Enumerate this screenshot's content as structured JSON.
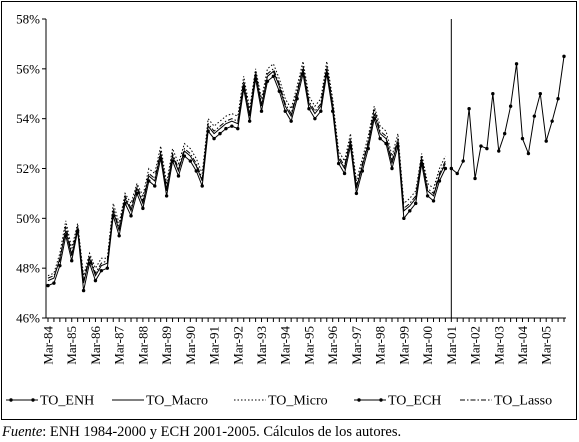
{
  "chart_data": {
    "type": "line",
    "title": "",
    "xlabel": "",
    "ylabel": "",
    "ylim": [
      46,
      58
    ],
    "y_ticks": [
      "46%",
      "48%",
      "50%",
      "52%",
      "54%",
      "56%",
      "58%"
    ],
    "x_tick_labels": [
      "Mar-84",
      "Mar-85",
      "Mar-86",
      "Mar-87",
      "Mar-88",
      "Mar-89",
      "Mar-90",
      "Mar-91",
      "Mar-92",
      "Mar-93",
      "Mar-94",
      "Mar-95",
      "Mar-96",
      "Mar-97",
      "Mar-98",
      "Mar-99",
      "Mar-00",
      "Mar-01",
      "Mar-02",
      "Mar-03",
      "Mar-04",
      "Mar-05"
    ],
    "frequency": "quarterly",
    "start": "Mar-84",
    "vertical_line_at": "Mar-01",
    "grid": false,
    "legend_position": "bottom",
    "series": [
      {
        "name": "TO_ENH",
        "style": "solid-markers",
        "values": [
          47.3,
          47.4,
          48.1,
          49.3,
          48.3,
          49.5,
          47.1,
          48.2,
          47.5,
          47.9,
          48.0,
          50.1,
          49.3,
          50.6,
          50.1,
          51.0,
          50.4,
          51.5,
          51.3,
          52.4,
          50.9,
          52.3,
          51.7,
          52.5,
          52.3,
          51.9,
          51.3,
          53.5,
          53.2,
          53.4,
          53.6,
          53.7,
          53.6,
          55.2,
          53.9,
          55.6,
          54.3,
          55.5,
          55.7,
          55.1,
          54.3,
          53.9,
          54.8,
          55.8,
          54.4,
          54.0,
          54.3,
          55.8,
          54.3,
          52.2,
          51.8,
          52.9,
          51.0,
          51.9,
          52.8,
          54.0,
          53.2,
          53.0,
          52.0,
          52.9,
          50.0,
          50.3,
          50.6,
          52.2,
          50.9,
          50.7,
          51.5,
          52.0
        ],
        "color": "#000000"
      },
      {
        "name": "TO_Macro",
        "style": "solid",
        "values": [
          47.5,
          47.6,
          48.4,
          49.5,
          48.5,
          49.6,
          47.4,
          48.4,
          47.7,
          48.1,
          48.2,
          50.3,
          49.5,
          50.8,
          50.3,
          51.2,
          50.6,
          51.7,
          51.5,
          52.6,
          51.1,
          52.5,
          51.9,
          52.7,
          52.5,
          52.1,
          51.5,
          53.7,
          53.4,
          53.6,
          53.8,
          53.9,
          53.8,
          55.4,
          54.1,
          55.8,
          54.5,
          55.7,
          55.9,
          55.3,
          54.5,
          54.1,
          55.0,
          56.0,
          54.6,
          54.2,
          54.5,
          56.0,
          54.5,
          52.4,
          52.0,
          53.1,
          51.2,
          52.1,
          53.0,
          54.2,
          53.4,
          53.2,
          52.2,
          53.1,
          50.3,
          50.5,
          50.8,
          52.4,
          51.1,
          50.9,
          51.7,
          52.2
        ],
        "color": "#000000"
      },
      {
        "name": "TO_Micro",
        "style": "dotted",
        "values": [
          47.7,
          47.8,
          48.6,
          49.9,
          48.8,
          49.8,
          47.7,
          48.6,
          48.0,
          48.4,
          48.4,
          50.6,
          49.8,
          51.0,
          50.6,
          51.4,
          50.9,
          52.0,
          51.8,
          52.9,
          51.4,
          52.8,
          52.2,
          53.0,
          52.8,
          52.4,
          51.8,
          54.0,
          53.7,
          53.9,
          54.1,
          54.2,
          54.1,
          55.7,
          54.4,
          56.0,
          54.8,
          56.0,
          56.2,
          55.6,
          54.8,
          54.4,
          55.3,
          56.3,
          54.9,
          54.5,
          54.8,
          56.3,
          54.8,
          52.7,
          52.3,
          53.4,
          51.5,
          52.4,
          53.3,
          54.5,
          53.7,
          53.5,
          52.5,
          53.4,
          50.6,
          50.8,
          51.1,
          52.6,
          51.4,
          51.2,
          52.0,
          52.5
        ],
        "color": "#000000"
      },
      {
        "name": "TO_ECH",
        "style": "solid-markers",
        "values": [
          null,
          null,
          null,
          null,
          null,
          null,
          null,
          null,
          null,
          null,
          null,
          null,
          null,
          null,
          null,
          null,
          null,
          null,
          null,
          null,
          null,
          null,
          null,
          null,
          null,
          null,
          null,
          null,
          null,
          null,
          null,
          null,
          null,
          null,
          null,
          null,
          null,
          null,
          null,
          null,
          null,
          null,
          null,
          null,
          null,
          null,
          null,
          null,
          null,
          null,
          null,
          null,
          null,
          null,
          null,
          null,
          null,
          null,
          null,
          null,
          null,
          null,
          null,
          null,
          null,
          null,
          null,
          null,
          52.0,
          51.8,
          52.3,
          54.4,
          51.6,
          52.9,
          52.8,
          55.0,
          52.7,
          53.4,
          54.5,
          56.2,
          53.2,
          52.6,
          54.1,
          55.0,
          53.1,
          53.9,
          54.8,
          56.5
        ],
        "color": "#000000"
      },
      {
        "name": "TO_Lasso",
        "style": "dash-dot",
        "values": [
          47.6,
          47.7,
          48.3,
          49.7,
          48.6,
          49.7,
          47.5,
          48.5,
          47.8,
          48.2,
          48.3,
          50.4,
          49.6,
          50.9,
          50.4,
          51.3,
          50.7,
          51.8,
          51.6,
          52.7,
          51.2,
          52.6,
          52.0,
          52.8,
          52.6,
          52.2,
          51.6,
          53.8,
          53.5,
          53.7,
          53.9,
          54.0,
          53.9,
          55.5,
          54.2,
          55.9,
          54.6,
          55.8,
          56.0,
          55.4,
          54.6,
          54.2,
          55.1,
          56.1,
          54.7,
          54.3,
          54.6,
          56.1,
          54.6,
          52.5,
          52.1,
          53.2,
          51.3,
          52.2,
          53.1,
          54.4,
          53.5,
          53.3,
          52.3,
          53.2,
          50.4,
          50.6,
          50.9,
          52.5,
          51.2,
          51.0,
          51.8,
          52.3
        ],
        "color": "#000000"
      }
    ]
  },
  "source_note": {
    "label": "Fuente",
    "text": ": ENH 1984-2000 y ECH 2001-2005. Cálculos de los autores."
  }
}
